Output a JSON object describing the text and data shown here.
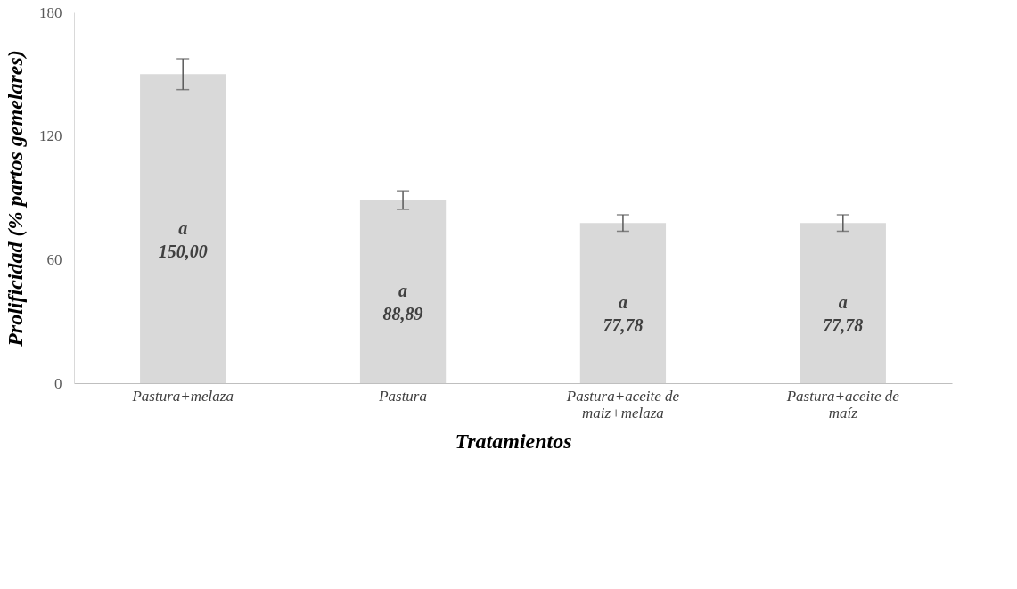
{
  "chart_data": {
    "type": "bar",
    "xlabel": "Tratamientos",
    "ylabel": "Prolificidad (% partos gemelares)",
    "categories": [
      "Pastura+melaza",
      "Pastura",
      "Pastura+aceite de maiz+melaza",
      "Pastura+aceite de maíz"
    ],
    "values": [
      150.0,
      88.89,
      77.78,
      77.78
    ],
    "errors": [
      7.5,
      4.5,
      4,
      4
    ],
    "color": "#d9d9d9",
    "value_labels": [
      "150,00",
      "88,89",
      "77,78",
      "77,78"
    ],
    "annotations": [
      "a",
      "a",
      "a",
      "a"
    ],
    "ylim": [
      0,
      180
    ],
    "yticks": [
      0,
      60,
      120,
      180
    ],
    "grid": false
  }
}
